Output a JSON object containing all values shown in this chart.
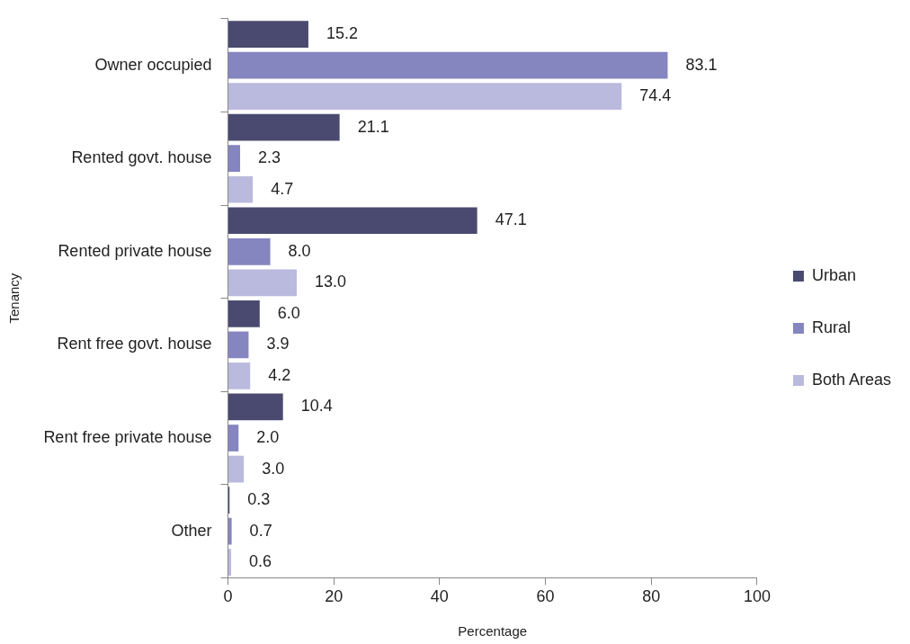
{
  "chart_data": {
    "type": "bar",
    "orientation": "horizontal",
    "xlabel": "Percentage",
    "ylabel": "Tenancy",
    "categories": [
      "Owner occupied",
      "Rented govt. house",
      "Rented private house",
      "Rent free govt. house",
      "Rent free private house",
      "Other"
    ],
    "series": [
      {
        "name": "Urban",
        "color": "#4a4a70",
        "values": [
          15.2,
          21.1,
          47.1,
          6.0,
          10.4,
          0.3
        ],
        "value_labels": [
          "15.2",
          "21.1",
          "47.1",
          "6.0",
          "10.4",
          "0.3"
        ]
      },
      {
        "name": "Rural",
        "color": "#8585c0",
        "values": [
          83.1,
          2.3,
          8.0,
          3.9,
          2.0,
          0.7
        ],
        "value_labels": [
          "83.1",
          "2.3",
          "8.0",
          "3.9",
          "2.0",
          "0.7"
        ]
      },
      {
        "name": "Both Areas",
        "color": "#babade",
        "values": [
          74.4,
          4.7,
          13.0,
          4.2,
          3.0,
          0.6
        ],
        "value_labels": [
          "74.4",
          "4.7",
          "13.0",
          "4.2",
          "3.0",
          "0.6"
        ]
      }
    ],
    "xlim": [
      0,
      100
    ],
    "xticks": [
      0,
      20,
      40,
      60,
      80,
      100
    ],
    "legend": "right",
    "grid": false
  }
}
